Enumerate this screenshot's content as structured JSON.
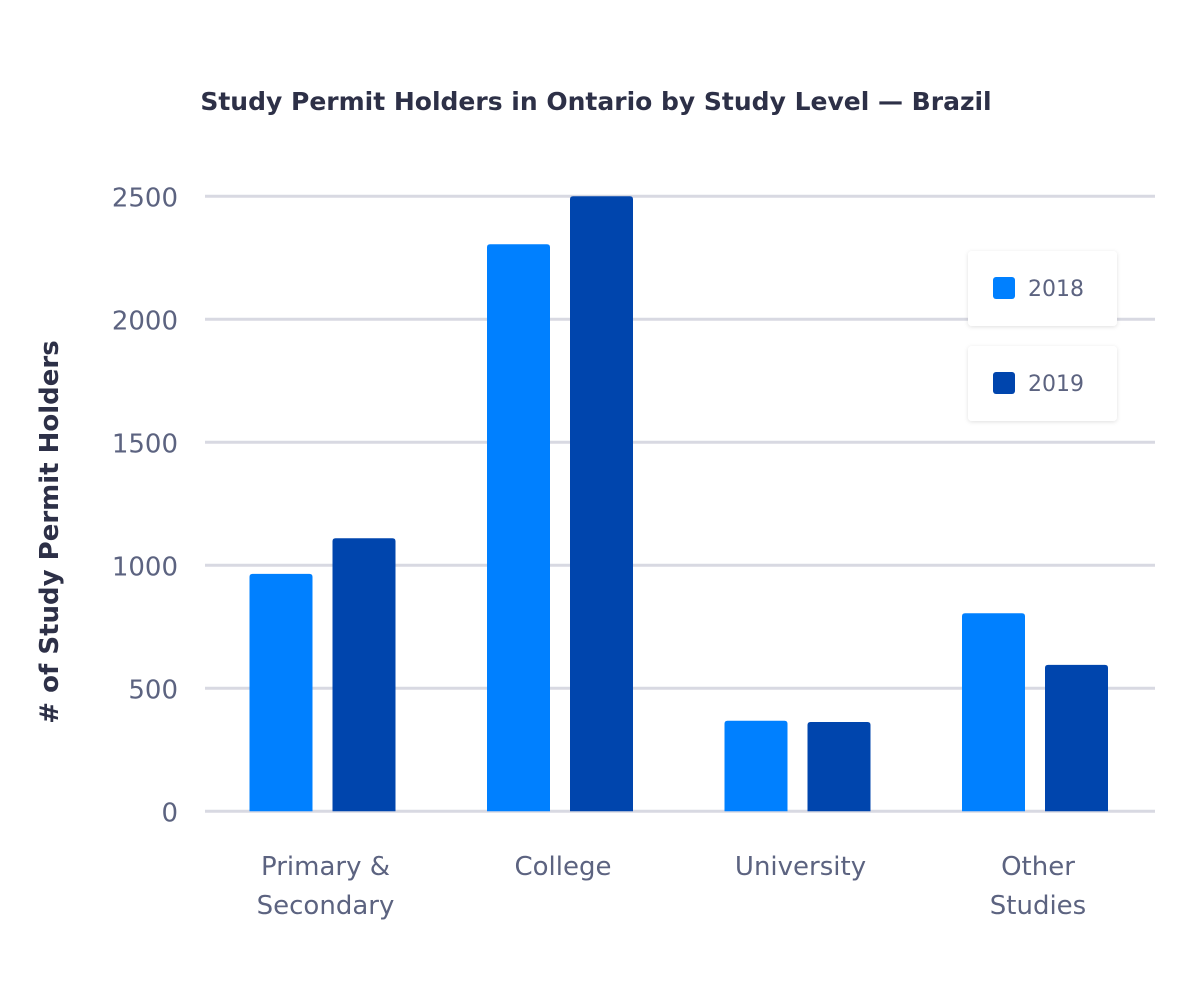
{
  "chart_data": {
    "type": "bar",
    "title": "Study Permit Holders in Ontario by Study Level — Brazil",
    "xlabel": "",
    "ylabel": "# of Study Permit Holders",
    "categories": [
      [
        "Primary &",
        "Secondary"
      ],
      [
        "College"
      ],
      [
        "University"
      ],
      [
        "Other",
        "Studies"
      ]
    ],
    "series": [
      {
        "name": "2018",
        "color": "#0080ff",
        "values": [
          965,
          2305,
          368,
          805
        ]
      },
      {
        "name": "2019",
        "color": "#0045ad",
        "values": [
          1110,
          2500,
          363,
          595
        ]
      }
    ],
    "ylim": [
      0,
      2500
    ],
    "yticks": [
      0,
      500,
      1000,
      1500,
      2000,
      2500
    ],
    "grid": true,
    "legend_position": "top-right"
  }
}
